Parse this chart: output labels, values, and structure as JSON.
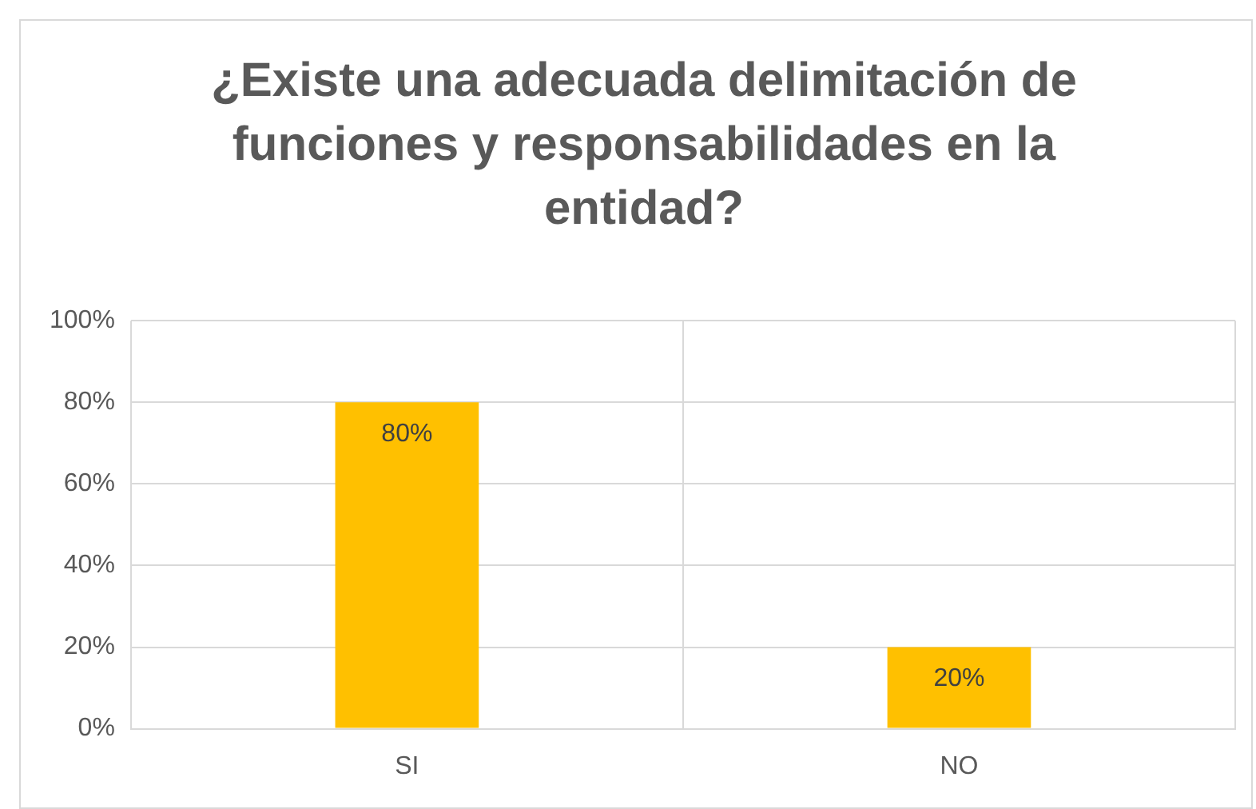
{
  "chart_data": {
    "type": "bar",
    "title": "¿Existe una adecuada delimitación de funciones y responsabilidades en la entidad?",
    "categories": [
      "SI",
      "NO"
    ],
    "values": [
      80,
      20
    ],
    "color": "#ffc000",
    "value_labels": [
      "80%",
      "20%"
    ],
    "ylim": [
      0,
      100
    ],
    "yticks": [
      {
        "value": 0,
        "label": "0%"
      },
      {
        "value": 20,
        "label": "20%"
      },
      {
        "value": 40,
        "label": "40%"
      },
      {
        "value": 60,
        "label": "60%"
      },
      {
        "value": 80,
        "label": "80%"
      },
      {
        "value": 100,
        "label": "100%"
      }
    ],
    "grid": true
  }
}
